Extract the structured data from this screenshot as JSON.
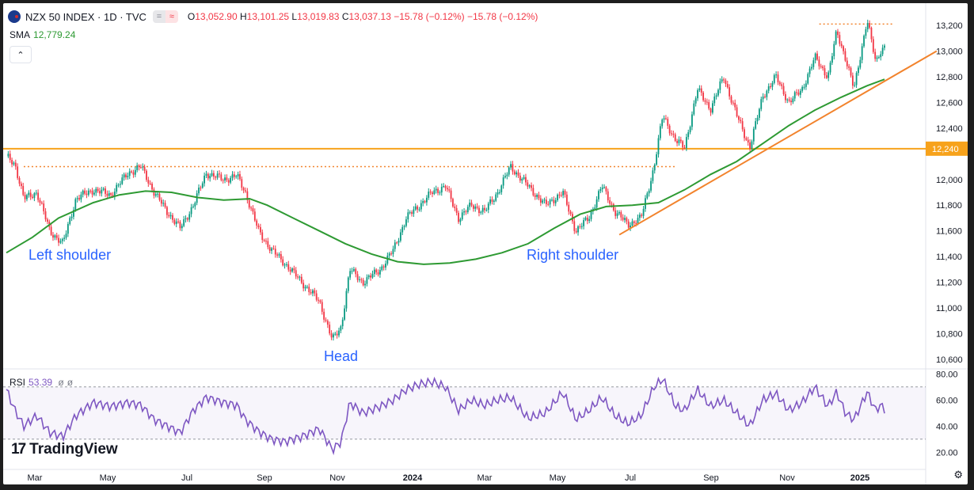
{
  "header": {
    "symbol": "NZX 50 INDEX · 1D · TVC",
    "indicator_icons": [
      "=",
      "≈"
    ],
    "ohlc": {
      "o_label": "O",
      "o": "13,052.90",
      "h_label": "H",
      "h": "13,101.25",
      "l_label": "L",
      "l": "13,019.83",
      "c_label": "C",
      "c": "13,037.13",
      "change": "−15.78 (−0.12%)",
      "change2": "−15.78 (−0.12%)"
    }
  },
  "sma": {
    "label": "SMA",
    "value": "12,779.24"
  },
  "rsi": {
    "label": "RSI",
    "value": "53.39",
    "extra1": "ø",
    "extra2": "ø"
  },
  "logo": {
    "mark": "17",
    "text": "TradingView"
  },
  "colors": {
    "price_up": "#089981",
    "price_down": "#f23645",
    "sma": "#2e9a33",
    "resistance": "#f7a21b",
    "trend": "#f2832c",
    "rsi": "#7e57c2",
    "annotation": "#2962ff"
  },
  "chart_data": [
    {
      "type": "candlestick",
      "title": "NZX 50 INDEX · 1D · TVC",
      "x_ticks": [
        "Mar",
        "May",
        "Jul",
        "Sep",
        "Nov",
        "2024",
        "Mar",
        "May",
        "Jul",
        "Sep",
        "Nov",
        "2025"
      ],
      "y_ticks": [
        "13,200",
        "13,000",
        "12,800",
        "12,600",
        "12,400",
        "12,000",
        "11,800",
        "11,600",
        "11,400",
        "11,200",
        "11,000",
        "10,800",
        "10,600"
      ],
      "ylim": [
        10500,
        13300
      ],
      "price_path": [
        [
          0,
          12180
        ],
        [
          0.01,
          12120
        ],
        [
          0.02,
          11850
        ],
        [
          0.035,
          11900
        ],
        [
          0.05,
          11600
        ],
        [
          0.065,
          11500
        ],
        [
          0.08,
          11850
        ],
        [
          0.1,
          11920
        ],
        [
          0.12,
          11880
        ],
        [
          0.14,
          12050
        ],
        [
          0.155,
          12100
        ],
        [
          0.17,
          11900
        ],
        [
          0.185,
          11750
        ],
        [
          0.2,
          11620
        ],
        [
          0.215,
          11800
        ],
        [
          0.23,
          12050
        ],
        [
          0.25,
          12000
        ],
        [
          0.265,
          12030
        ],
        [
          0.275,
          11900
        ],
        [
          0.29,
          11600
        ],
        [
          0.305,
          11450
        ],
        [
          0.32,
          11350
        ],
        [
          0.34,
          11200
        ],
        [
          0.36,
          11050
        ],
        [
          0.375,
          10750
        ],
        [
          0.385,
          10850
        ],
        [
          0.395,
          11300
        ],
        [
          0.41,
          11200
        ],
        [
          0.43,
          11300
        ],
        [
          0.445,
          11450
        ],
        [
          0.46,
          11700
        ],
        [
          0.475,
          11800
        ],
        [
          0.49,
          11900
        ],
        [
          0.505,
          11950
        ],
        [
          0.52,
          11700
        ],
        [
          0.535,
          11800
        ],
        [
          0.55,
          11750
        ],
        [
          0.565,
          11900
        ],
        [
          0.58,
          12100
        ],
        [
          0.6,
          11950
        ],
        [
          0.62,
          11800
        ],
        [
          0.64,
          11900
        ],
        [
          0.655,
          11600
        ],
        [
          0.67,
          11700
        ],
        [
          0.685,
          11950
        ],
        [
          0.7,
          11750
        ],
        [
          0.715,
          11650
        ],
        [
          0.73,
          11700
        ],
        [
          0.745,
          12100
        ],
        [
          0.755,
          12500
        ],
        [
          0.77,
          12300
        ],
        [
          0.78,
          12250
        ],
        [
          0.795,
          12700
        ],
        [
          0.81,
          12550
        ],
        [
          0.825,
          12800
        ],
        [
          0.84,
          12500
        ],
        [
          0.855,
          12250
        ],
        [
          0.87,
          12650
        ],
        [
          0.885,
          12800
        ],
        [
          0.9,
          12600
        ],
        [
          0.915,
          12700
        ],
        [
          0.93,
          12950
        ],
        [
          0.945,
          12800
        ],
        [
          0.955,
          13150
        ],
        [
          0.965,
          12950
        ],
        [
          0.975,
          12700
        ],
        [
          0.99,
          13250
        ],
        [
          1.0,
          12900
        ],
        [
          1.005,
          13000
        ],
        [
          1.01,
          13040
        ]
      ],
      "sma_path": [
        [
          0,
          11430
        ],
        [
          0.03,
          11550
        ],
        [
          0.06,
          11700
        ],
        [
          0.1,
          11820
        ],
        [
          0.13,
          11880
        ],
        [
          0.16,
          11910
        ],
        [
          0.19,
          11900
        ],
        [
          0.22,
          11860
        ],
        [
          0.25,
          11840
        ],
        [
          0.28,
          11850
        ],
        [
          0.3,
          11800
        ],
        [
          0.33,
          11700
        ],
        [
          0.36,
          11600
        ],
        [
          0.39,
          11500
        ],
        [
          0.42,
          11420
        ],
        [
          0.45,
          11360
        ],
        [
          0.48,
          11340
        ],
        [
          0.51,
          11350
        ],
        [
          0.54,
          11380
        ],
        [
          0.57,
          11430
        ],
        [
          0.6,
          11500
        ],
        [
          0.63,
          11620
        ],
        [
          0.66,
          11730
        ],
        [
          0.69,
          11790
        ],
        [
          0.72,
          11800
        ],
        [
          0.75,
          11820
        ],
        [
          0.78,
          11920
        ],
        [
          0.81,
          12040
        ],
        [
          0.84,
          12140
        ],
        [
          0.87,
          12280
        ],
        [
          0.9,
          12420
        ],
        [
          0.93,
          12540
        ],
        [
          0.96,
          12640
        ],
        [
          0.99,
          12730
        ],
        [
          1.01,
          12780
        ]
      ],
      "resistance_line": 12240,
      "resistance_label": "12,240",
      "neckline_dotted": 12100,
      "top_dotted": 13210,
      "trend_line": [
        [
          0.705,
          11570
        ],
        [
          1.07,
          13000
        ]
      ],
      "annotations": [
        {
          "text": "Left shoulder"
        },
        {
          "text": "Head"
        },
        {
          "text": "Right shoulder"
        }
      ]
    },
    {
      "type": "line",
      "title": "RSI",
      "y_ticks": [
        "80.00",
        "60.00",
        "40.00",
        "20.00"
      ],
      "ylim": [
        16,
        82
      ],
      "levels": [
        70,
        30
      ],
      "rsi_path": [
        [
          0,
          68
        ],
        [
          0.01,
          52
        ],
        [
          0.02,
          40
        ],
        [
          0.035,
          48
        ],
        [
          0.05,
          35
        ],
        [
          0.065,
          32
        ],
        [
          0.08,
          48
        ],
        [
          0.1,
          58
        ],
        [
          0.12,
          55
        ],
        [
          0.14,
          58
        ],
        [
          0.155,
          56
        ],
        [
          0.17,
          45
        ],
        [
          0.185,
          40
        ],
        [
          0.2,
          35
        ],
        [
          0.215,
          52
        ],
        [
          0.23,
          62
        ],
        [
          0.25,
          58
        ],
        [
          0.265,
          56
        ],
        [
          0.275,
          45
        ],
        [
          0.29,
          36
        ],
        [
          0.305,
          30
        ],
        [
          0.32,
          28
        ],
        [
          0.34,
          32
        ],
        [
          0.36,
          38
        ],
        [
          0.375,
          22
        ],
        [
          0.385,
          28
        ],
        [
          0.395,
          58
        ],
        [
          0.41,
          50
        ],
        [
          0.43,
          55
        ],
        [
          0.445,
          60
        ],
        [
          0.46,
          68
        ],
        [
          0.475,
          72
        ],
        [
          0.49,
          74
        ],
        [
          0.505,
          70
        ],
        [
          0.52,
          52
        ],
        [
          0.535,
          60
        ],
        [
          0.55,
          56
        ],
        [
          0.565,
          60
        ],
        [
          0.58,
          62
        ],
        [
          0.6,
          46
        ],
        [
          0.62,
          50
        ],
        [
          0.64,
          66
        ],
        [
          0.655,
          45
        ],
        [
          0.67,
          52
        ],
        [
          0.685,
          62
        ],
        [
          0.7,
          48
        ],
        [
          0.715,
          42
        ],
        [
          0.73,
          48
        ],
        [
          0.745,
          70
        ],
        [
          0.755,
          76
        ],
        [
          0.77,
          55
        ],
        [
          0.78,
          52
        ],
        [
          0.795,
          68
        ],
        [
          0.81,
          55
        ],
        [
          0.825,
          60
        ],
        [
          0.84,
          50
        ],
        [
          0.855,
          40
        ],
        [
          0.87,
          60
        ],
        [
          0.885,
          65
        ],
        [
          0.9,
          52
        ],
        [
          0.915,
          58
        ],
        [
          0.93,
          70
        ],
        [
          0.945,
          55
        ],
        [
          0.955,
          66
        ],
        [
          0.965,
          50
        ],
        [
          0.975,
          45
        ],
        [
          0.99,
          66
        ],
        [
          1.0,
          52
        ],
        [
          1.005,
          56
        ],
        [
          1.01,
          53
        ]
      ]
    }
  ]
}
